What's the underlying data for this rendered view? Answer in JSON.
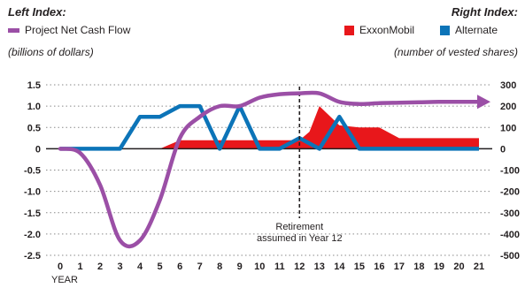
{
  "legend": {
    "left_title": "Left Index:",
    "right_title": "Right Index:",
    "left_series_label": "Project Net Cash Flow",
    "left_units": "(billions of dollars)",
    "right_series": [
      {
        "label": "ExxonMobil"
      },
      {
        "label": "Alternate"
      }
    ],
    "right_units": "(number of vested shares)"
  },
  "annotation": {
    "line1": "Retirement",
    "line2": "assumed in Year 12",
    "year": 12
  },
  "colors": {
    "cash_flow": "#9b4fa6",
    "exxonmobil": "#e8171b",
    "alternate": "#0c74b8"
  },
  "chart_data": {
    "type": "line",
    "xlabel": "YEAR",
    "x": [
      0,
      1,
      2,
      3,
      4,
      5,
      6,
      7,
      8,
      9,
      10,
      11,
      12,
      13,
      14,
      15,
      16,
      17,
      18,
      19,
      20,
      21
    ],
    "x_ticks": [
      "0",
      "1",
      "2",
      "3",
      "4",
      "5",
      "6",
      "7",
      "8",
      "9",
      "10",
      "11",
      "12",
      "13",
      "14",
      "15",
      "16",
      "17",
      "18",
      "19",
      "20",
      "21"
    ],
    "left_axis": {
      "ylim": [
        -2.5,
        1.5
      ],
      "ticks": [
        "1.5",
        "1.0",
        "0.5",
        "0",
        "-0.5",
        "-1.0",
        "-1.5",
        "-2.0",
        "-2.5"
      ],
      "tick_values": [
        1.5,
        1.0,
        0.5,
        0,
        -0.5,
        -1.0,
        -1.5,
        -2.0,
        -2.5
      ]
    },
    "right_axis": {
      "ylim": [
        -500,
        300
      ],
      "ticks": [
        "300",
        "200",
        "100",
        "0",
        "-100",
        "-200",
        "-300",
        "-400",
        "-500"
      ],
      "tick_values": [
        300,
        200,
        100,
        0,
        -100,
        -200,
        -300,
        -400,
        -500
      ]
    },
    "grid": "horizontal-dotted",
    "series": [
      {
        "name": "Project Net Cash Flow",
        "axis": "left",
        "kind": "line",
        "x": [
          0,
          1,
          2,
          3,
          4,
          5,
          6,
          7,
          8,
          9,
          10,
          11,
          12,
          13,
          14,
          15,
          16,
          17,
          18,
          19,
          20,
          21
        ],
        "values": [
          0,
          -0.1,
          -0.85,
          -2.15,
          -2.15,
          -1.2,
          0.25,
          0.75,
          1.0,
          1.0,
          1.2,
          1.28,
          1.3,
          1.3,
          1.1,
          1.05,
          1.07,
          1.08,
          1.09,
          1.1,
          1.1,
          1.1
        ]
      },
      {
        "name": "ExxonMobil",
        "axis": "right",
        "kind": "area",
        "x": [
          0,
          5,
          6,
          7,
          8,
          9,
          10,
          11,
          12,
          12.5,
          13,
          14,
          15,
          16,
          17,
          18,
          19,
          20,
          21
        ],
        "values": [
          0,
          0,
          40,
          40,
          40,
          40,
          40,
          40,
          40,
          80,
          200,
          110,
          100,
          100,
          50,
          50,
          50,
          50,
          50
        ]
      },
      {
        "name": "Alternate",
        "axis": "right",
        "kind": "line",
        "x": [
          0,
          1,
          2,
          3,
          4,
          5,
          6,
          7,
          8,
          9,
          10,
          11,
          12,
          13,
          14,
          15,
          16,
          17,
          18,
          19,
          20,
          21
        ],
        "values": [
          0,
          0,
          0,
          0,
          150,
          150,
          200,
          200,
          0,
          200,
          0,
          0,
          50,
          0,
          150,
          0,
          0,
          0,
          0,
          0,
          0,
          0
        ]
      }
    ]
  }
}
